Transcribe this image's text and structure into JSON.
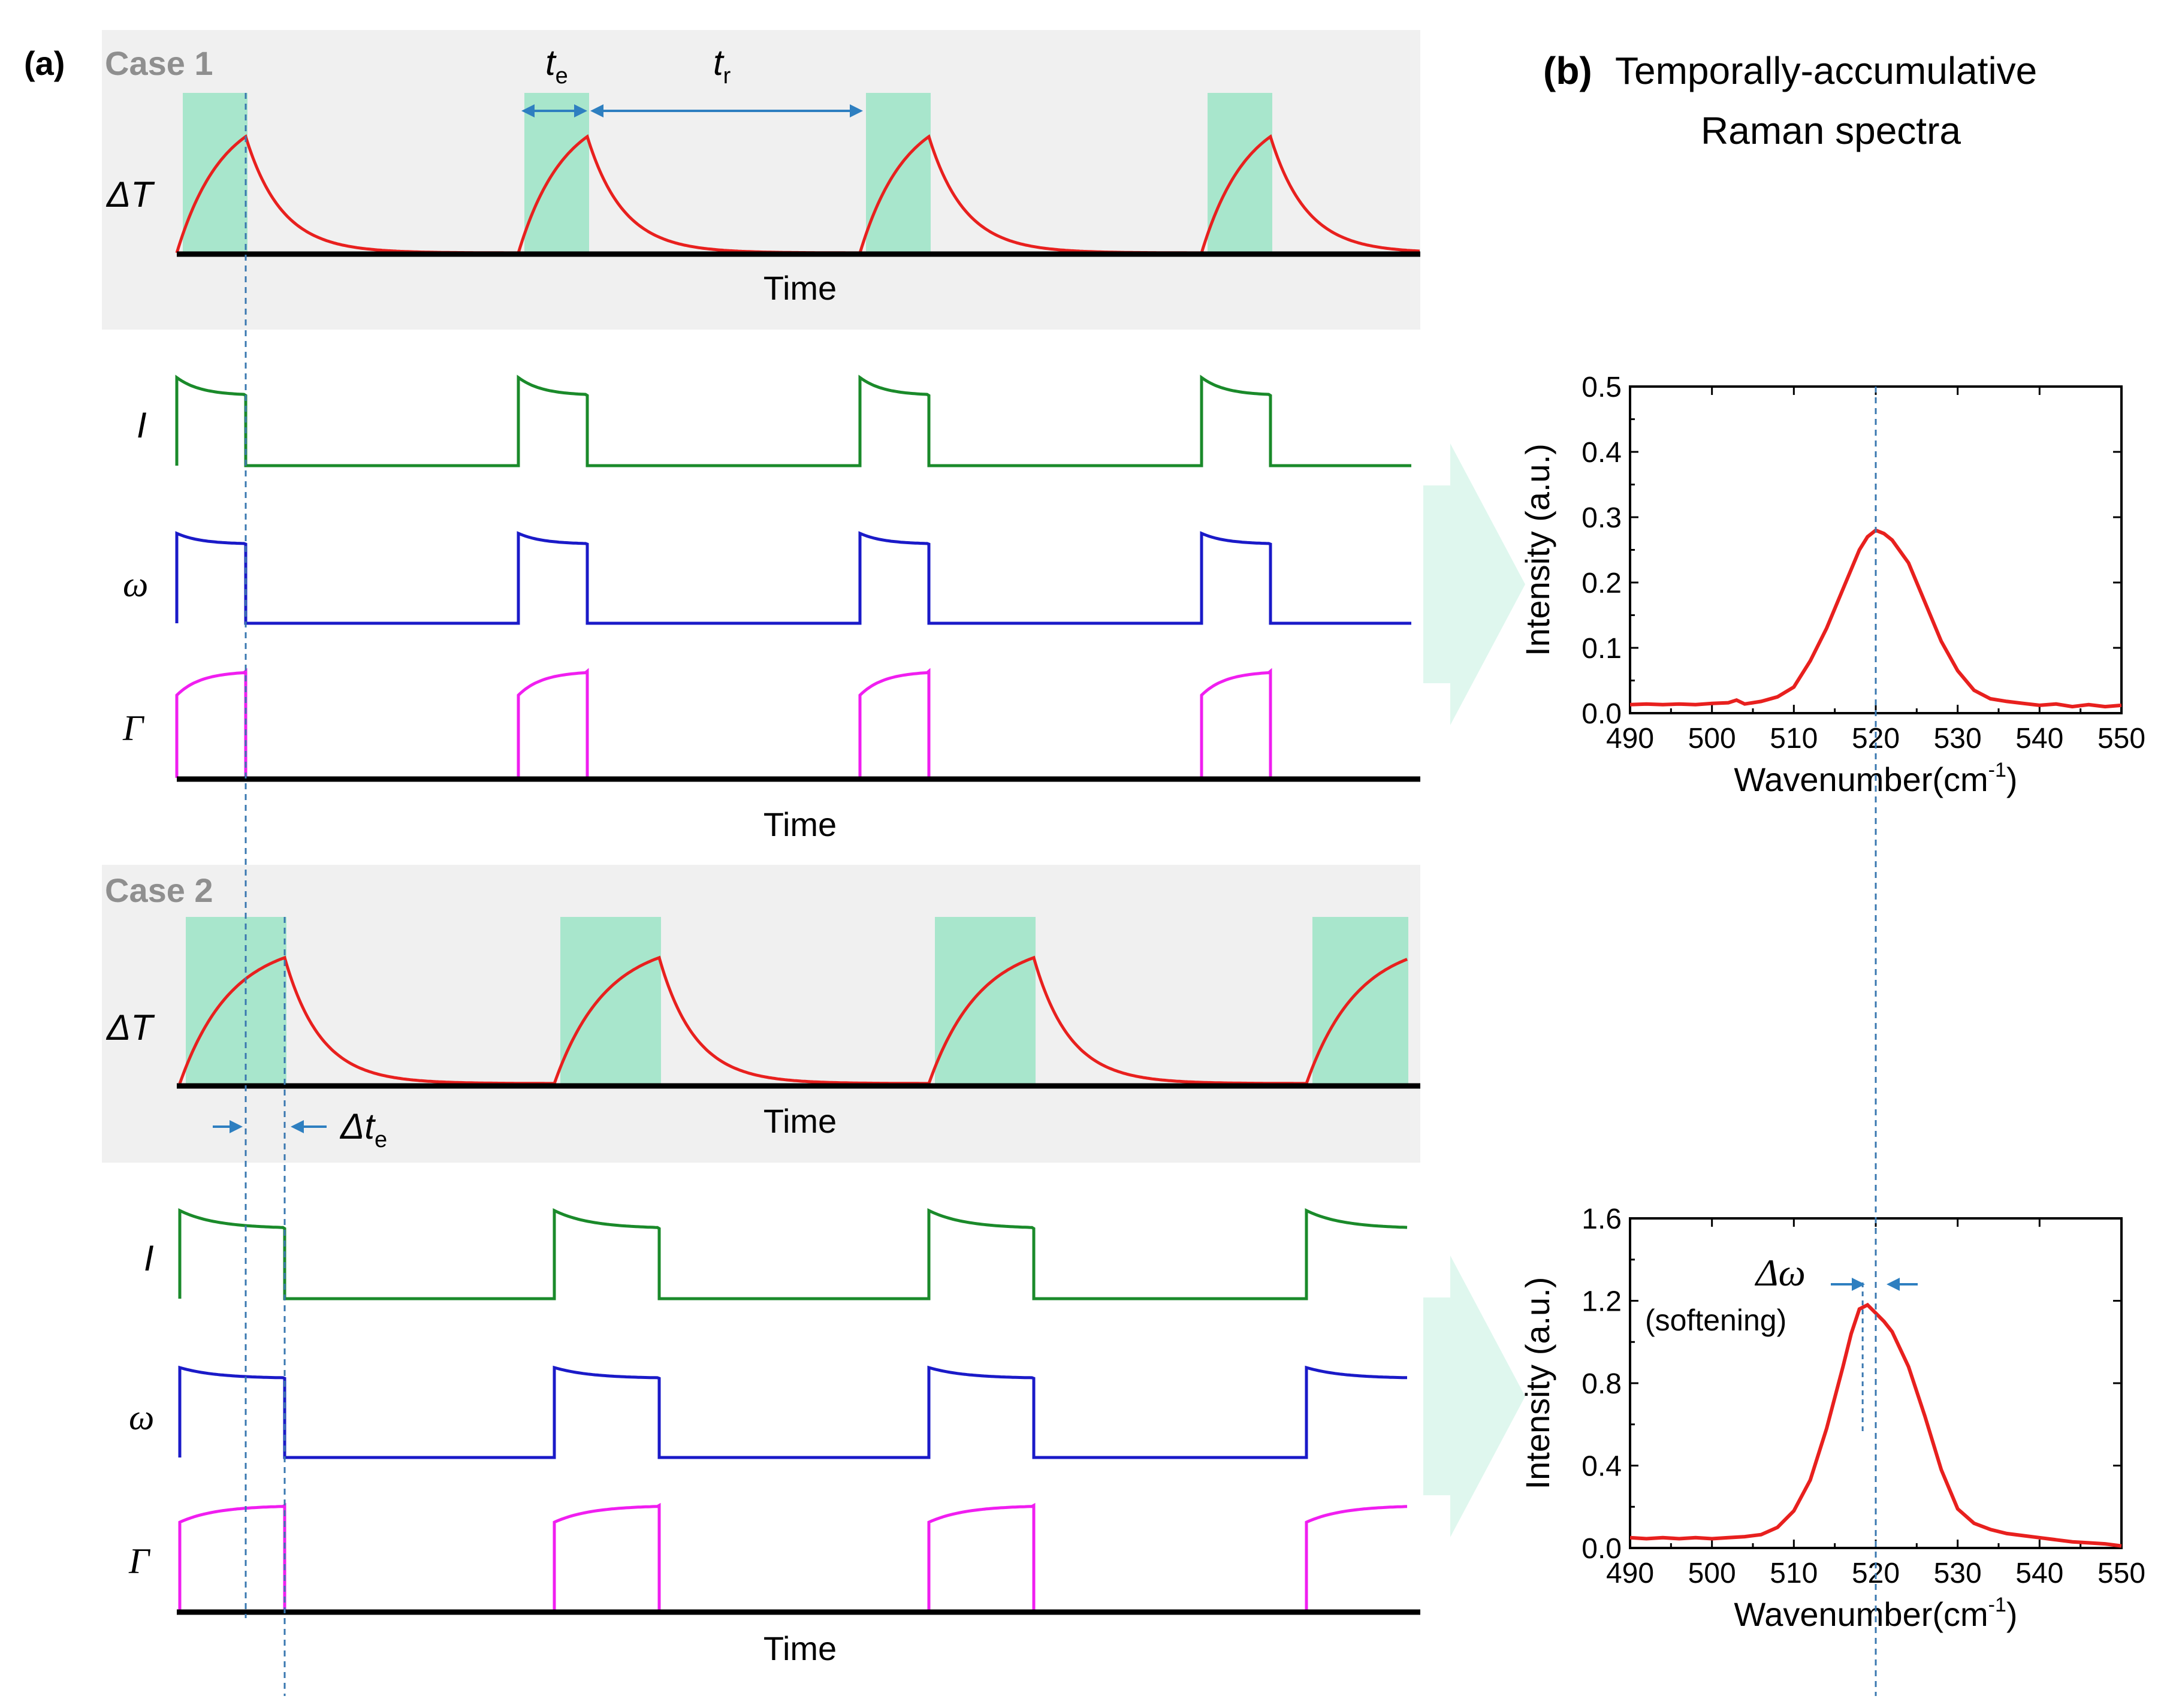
{
  "panel_a": {
    "label": "(a)",
    "time_label": "Time",
    "case1": {
      "title": "Case 1",
      "symbols": {
        "deltaT": "ΔT",
        "I": "I",
        "omega": "ω",
        "Gamma": "Γ"
      },
      "t_e": {
        "main": "t",
        "sub": "e"
      },
      "t_r": {
        "main": "t",
        "sub": "r"
      }
    },
    "case2": {
      "title": "Case 2",
      "symbols": {
        "deltaT": "ΔT",
        "I": "I",
        "omega": "ω",
        "Gamma": "Γ"
      },
      "delta_te": {
        "main": "Δt",
        "sub": "e"
      }
    }
  },
  "panel_b": {
    "label": "(b)",
    "title_line1": "Temporally-accumulative",
    "title_line2": "Raman spectra",
    "annotation_delta": "Δω",
    "annotation_softening": "(softening)"
  },
  "colors": {
    "heat": "#e8201e",
    "intensity": "#1a8a2a",
    "omega": "#1a1ac8",
    "gamma": "#f01ef0",
    "pulse": "#a8e6cc",
    "case_bg": "#f0f0f0",
    "dashed": "#3a78b0",
    "arrow": "#2e7fc0",
    "big_arrow": "#dff7ee"
  },
  "chart_data": [
    {
      "type": "line",
      "name": "case1-spectrum",
      "title": "",
      "xlabel": "Wavenumber(cm",
      "xlabel_sup": "-1",
      "xlabel_end": ")",
      "ylabel": "Intensity (a.u.)",
      "xlim": [
        490,
        550
      ],
      "ylim": [
        0,
        0.5
      ],
      "xticks": [
        490,
        500,
        510,
        520,
        530,
        540,
        550
      ],
      "xtick_labels": [
        "490",
        "500",
        "510",
        "520",
        "530",
        "540",
        "550"
      ],
      "yticks": [
        0.0,
        0.1,
        0.2,
        0.3,
        0.4,
        0.5
      ],
      "ytick_labels": [
        "0.0",
        "0.1",
        "0.2",
        "0.3",
        "0.4",
        "0.5"
      ],
      "reference_line_x": 520.3,
      "series": [
        {
          "name": "spectrum",
          "x": [
            490,
            492,
            494,
            496,
            498,
            500,
            502,
            503,
            504,
            506,
            508,
            510,
            512,
            514,
            516,
            518,
            519,
            520,
            521,
            522,
            524,
            526,
            528,
            530,
            532,
            534,
            536,
            538,
            540,
            542,
            544,
            546,
            548,
            550
          ],
          "y": [
            0.013,
            0.014,
            0.013,
            0.014,
            0.013,
            0.015,
            0.016,
            0.02,
            0.014,
            0.018,
            0.025,
            0.04,
            0.08,
            0.13,
            0.19,
            0.25,
            0.27,
            0.28,
            0.275,
            0.265,
            0.23,
            0.17,
            0.11,
            0.065,
            0.035,
            0.022,
            0.018,
            0.015,
            0.012,
            0.014,
            0.01,
            0.013,
            0.01,
            0.012
          ]
        }
      ]
    },
    {
      "type": "line",
      "name": "case2-spectrum",
      "title": "",
      "xlabel": "Wavenumber(cm",
      "xlabel_sup": "-1",
      "xlabel_end": ")",
      "ylabel": "Intensity (a.u.)",
      "xlim": [
        490,
        550
      ],
      "ylim": [
        0,
        1.6
      ],
      "xticks": [
        490,
        500,
        510,
        520,
        530,
        540,
        550
      ],
      "xtick_labels": [
        "490",
        "500",
        "510",
        "520",
        "530",
        "540",
        "550"
      ],
      "yticks": [
        0.0,
        0.4,
        0.8,
        1.2,
        1.6
      ],
      "ytick_labels": [
        "0.0",
        "0.4",
        "0.8",
        "1.2",
        "1.6"
      ],
      "reference_line_x": 520.3,
      "peak_line_x": 518.4,
      "series": [
        {
          "name": "spectrum",
          "x": [
            490,
            492,
            494,
            496,
            498,
            500,
            502,
            504,
            506,
            508,
            510,
            512,
            514,
            516,
            517,
            518,
            519,
            520,
            521,
            522,
            524,
            526,
            528,
            530,
            532,
            534,
            536,
            538,
            540,
            542,
            544,
            546,
            548,
            550
          ],
          "y": [
            0.05,
            0.045,
            0.05,
            0.045,
            0.05,
            0.045,
            0.05,
            0.055,
            0.065,
            0.1,
            0.18,
            0.33,
            0.58,
            0.88,
            1.04,
            1.16,
            1.18,
            1.14,
            1.1,
            1.05,
            0.88,
            0.64,
            0.38,
            0.19,
            0.12,
            0.09,
            0.07,
            0.06,
            0.05,
            0.04,
            0.03,
            0.025,
            0.02,
            0.01
          ]
        }
      ]
    }
  ]
}
